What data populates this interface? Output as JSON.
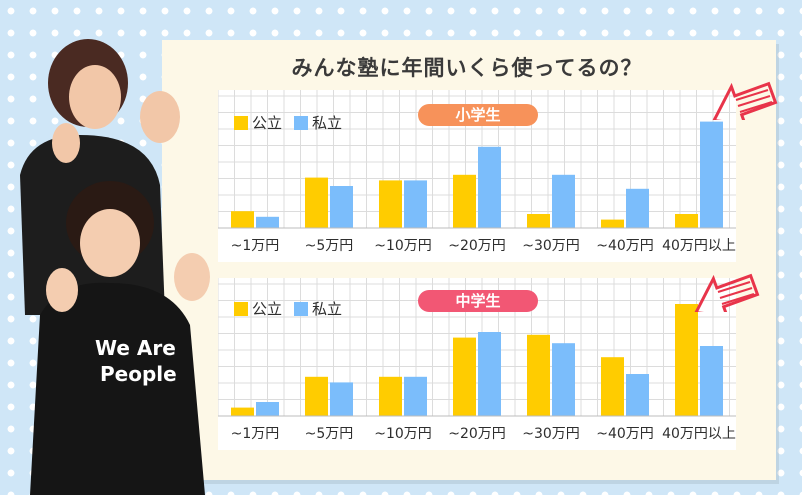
{
  "title": "みんな塾に年間いくら使ってるの？",
  "colors": {
    "public": "#ffcc00",
    "private": "#7bbdfb",
    "elementary_badge": "#f7925a",
    "junior_badge": "#f25774",
    "arrow": "#e8344a"
  },
  "legend": {
    "public": "公立",
    "private": "私立"
  },
  "chart_data": [
    {
      "type": "bar",
      "title": "小学生",
      "categories": [
        "~1万円",
        "~5万円",
        "~10万円",
        "~20万円",
        "~30万円",
        "~40万円",
        "40万円以上"
      ],
      "series": [
        {
          "name": "公立",
          "values": [
            6,
            18,
            17,
            19,
            5,
            3,
            5
          ]
        },
        {
          "name": "私立",
          "values": [
            4,
            15,
            17,
            29,
            19,
            14,
            38
          ]
        }
      ],
      "ylim": [
        0,
        40
      ],
      "grid": true,
      "legend_position": "top-left"
    },
    {
      "type": "bar",
      "title": "中学生",
      "categories": [
        "~1万円",
        "~5万円",
        "~10万円",
        "~20万円",
        "~30万円",
        "~40万円",
        "40万円以上"
      ],
      "series": [
        {
          "name": "公立",
          "values": [
            3,
            14,
            14,
            28,
            29,
            21,
            40
          ]
        },
        {
          "name": "私立",
          "values": [
            5,
            12,
            14,
            30,
            26,
            15,
            25
          ]
        }
      ],
      "ylim": [
        0,
        40
      ],
      "grid": true,
      "legend_position": "top-left"
    }
  ],
  "photo": {
    "shirt_text": "We Are\nPeople"
  }
}
